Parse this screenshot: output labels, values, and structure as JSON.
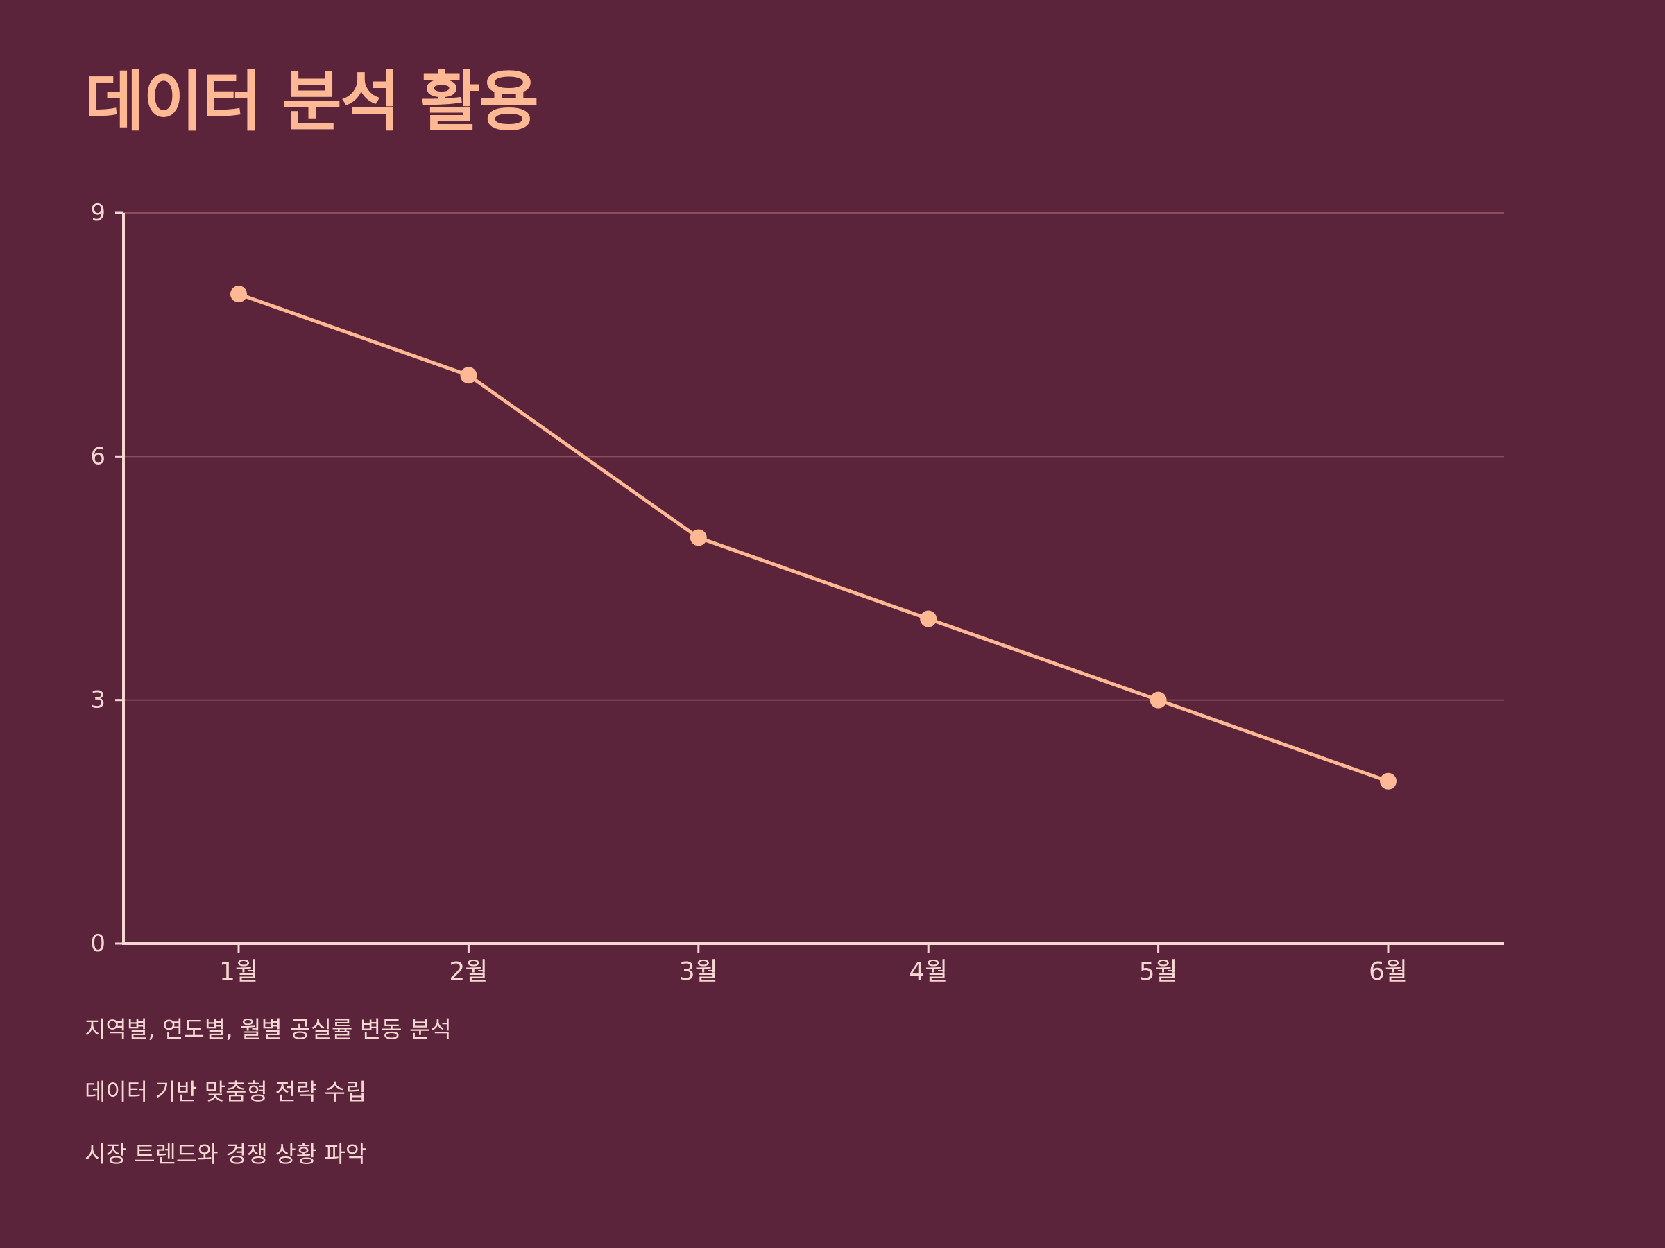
{
  "colors": {
    "background": "#5b243b",
    "accent": "#ffb894",
    "text": "#f6d7d2",
    "grid": "#8a4d5d"
  },
  "title": "데이터 분석 활용",
  "bullets": [
    "지역별, 연도별, 월별 공실률 변동 분석",
    "데이터 기반 맞춤형 전략 수립",
    "시장 트렌드와 경쟁 상황 파악"
  ],
  "chart_data": {
    "type": "line",
    "categories": [
      "1월",
      "2월",
      "3월",
      "4월",
      "5월",
      "6월"
    ],
    "series": [
      {
        "values": [
          8,
          7,
          5,
          4,
          3,
          2
        ]
      }
    ],
    "ylim": [
      0,
      9
    ],
    "yticks": [
      0,
      3,
      6,
      9
    ],
    "grid": true,
    "legend": "none",
    "xlabel": "",
    "ylabel": ""
  }
}
